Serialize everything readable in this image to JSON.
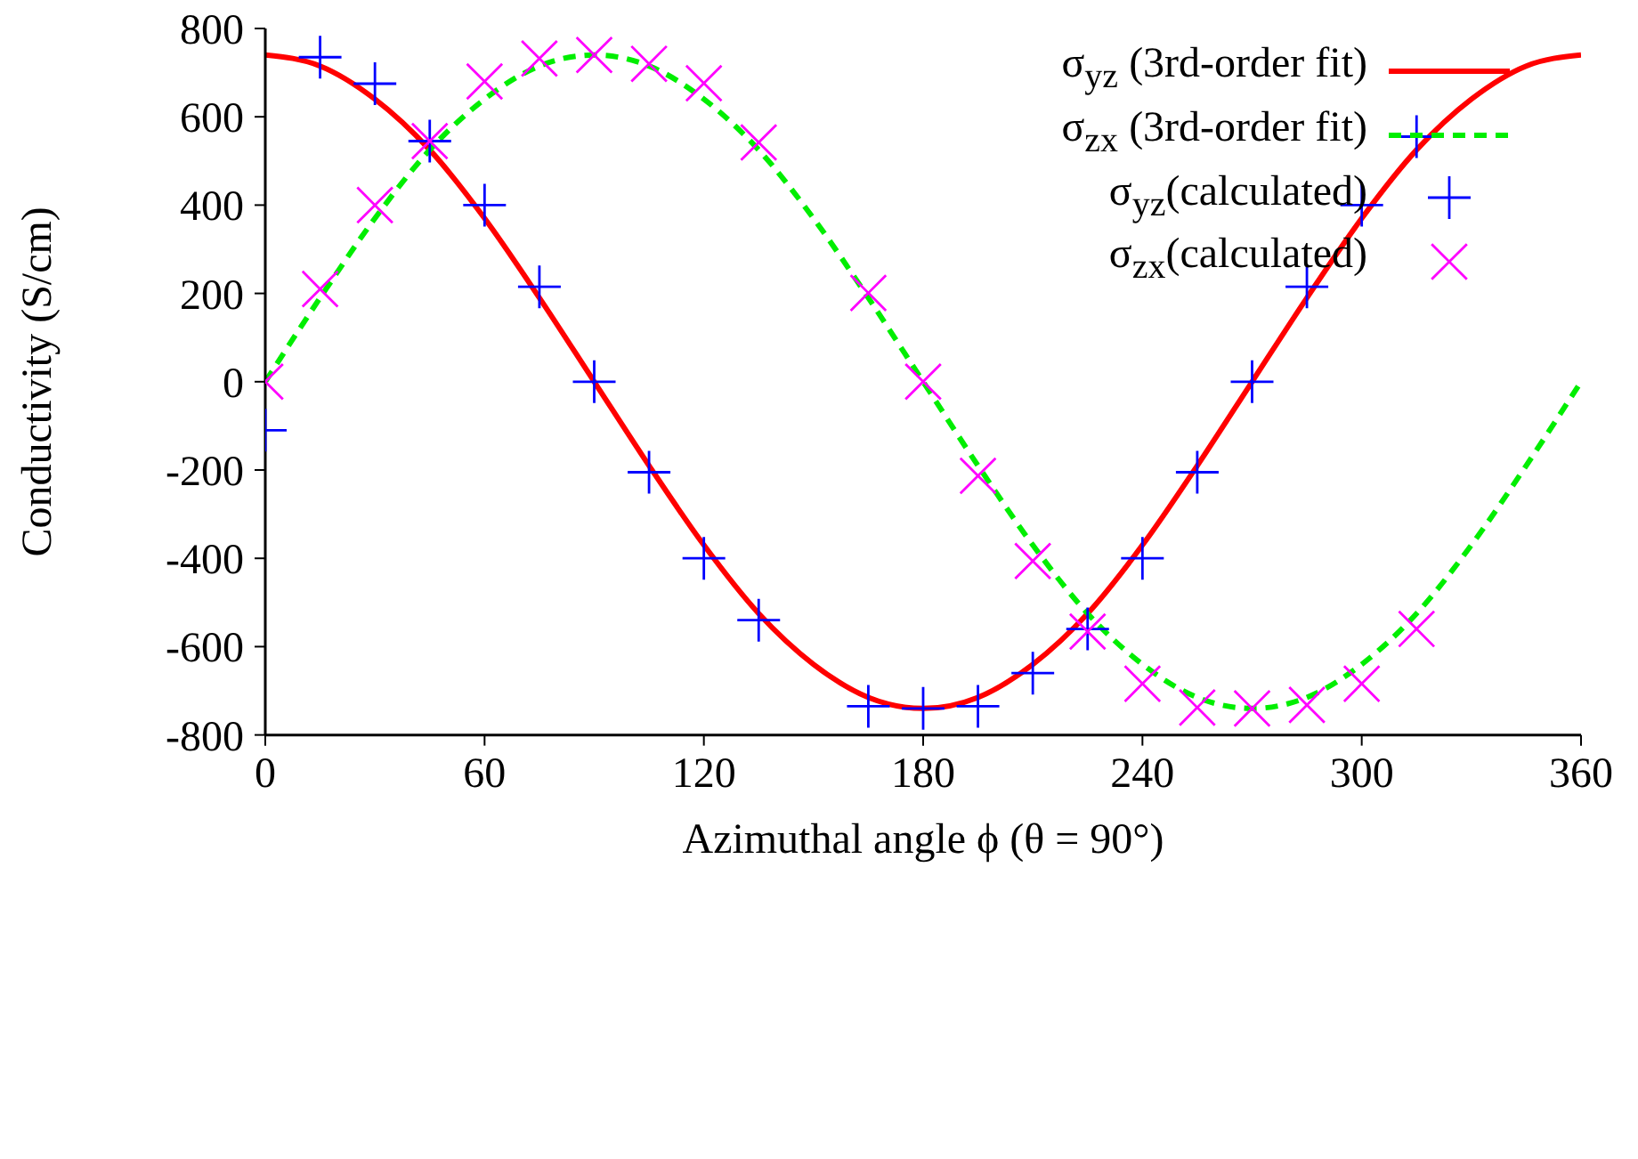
{
  "chart_data": {
    "type": "line",
    "xlabel": "Azimuthal angle ϕ (θ = 90°)",
    "ylabel": "Conductivity (S/cm)",
    "xlim": [
      0,
      360
    ],
    "xticks": [
      0,
      60,
      120,
      180,
      240,
      300,
      360
    ],
    "ylim": [
      -800,
      800
    ],
    "yticks": [
      -800,
      -600,
      -400,
      -200,
      0,
      200,
      400,
      600,
      800
    ],
    "grid": false,
    "legend": "top right",
    "series": [
      {
        "name": "σ$_{yz}$ (3rd-order fit)",
        "color": "#ff0000",
        "line_style": "solid",
        "marker": "none",
        "x": [
          0,
          15,
          30,
          45,
          60,
          75,
          90,
          105,
          120,
          135,
          150,
          165,
          180,
          195,
          210,
          225,
          240,
          255,
          270,
          285,
          300,
          315,
          330,
          345,
          360
        ],
        "values": [
          740,
          715,
          640,
          525,
          370,
          190,
          0,
          -190,
          -370,
          -525,
          -640,
          -715,
          -740,
          -715,
          -640,
          -525,
          -370,
          -190,
          0,
          190,
          370,
          525,
          640,
          715,
          740
        ]
      },
      {
        "name": "σ$_{zx}$ (3rd-order fit)",
        "color": "#00ee00",
        "line_style": "dashed",
        "marker": "none",
        "x": [
          0,
          15,
          30,
          45,
          60,
          75,
          90,
          105,
          120,
          135,
          150,
          165,
          180,
          195,
          210,
          225,
          240,
          255,
          270,
          285,
          300,
          315,
          330,
          345,
          360
        ],
        "values": [
          0,
          190,
          370,
          525,
          640,
          715,
          740,
          715,
          640,
          525,
          370,
          190,
          0,
          -190,
          -370,
          -525,
          -640,
          -715,
          -740,
          -715,
          -640,
          -525,
          -370,
          -190,
          0
        ]
      },
      {
        "name": "σ$_{yz}$(calculated)",
        "type": "scatter",
        "color": "#0000ff",
        "marker": "cross",
        "x": [
          0,
          15,
          30,
          45,
          60,
          75,
          90,
          105,
          120,
          135,
          165,
          180,
          195,
          210,
          225,
          240,
          255,
          270,
          285,
          300,
          315
        ],
        "values": [
          -110,
          735,
          675,
          545,
          400,
          215,
          0,
          -205,
          -400,
          -540,
          -735,
          -740,
          -735,
          -660,
          -560,
          -400,
          -205,
          0,
          215,
          400,
          555
        ]
      },
      {
        "name": "σ$_{zx}$(calculated)",
        "type": "scatter",
        "color": "#ff00ff",
        "marker": "cross",
        "x": [
          0,
          15,
          30,
          45,
          60,
          75,
          90,
          105,
          120,
          135,
          165,
          180,
          195,
          210,
          225,
          240,
          255,
          270,
          285,
          300,
          315
        ],
        "values": [
          0,
          210,
          400,
          545,
          680,
          732,
          740,
          720,
          676,
          542,
          201,
          0,
          -213,
          -406,
          -566,
          -684,
          -738,
          -740,
          -732,
          -684,
          -560
        ]
      }
    ]
  }
}
